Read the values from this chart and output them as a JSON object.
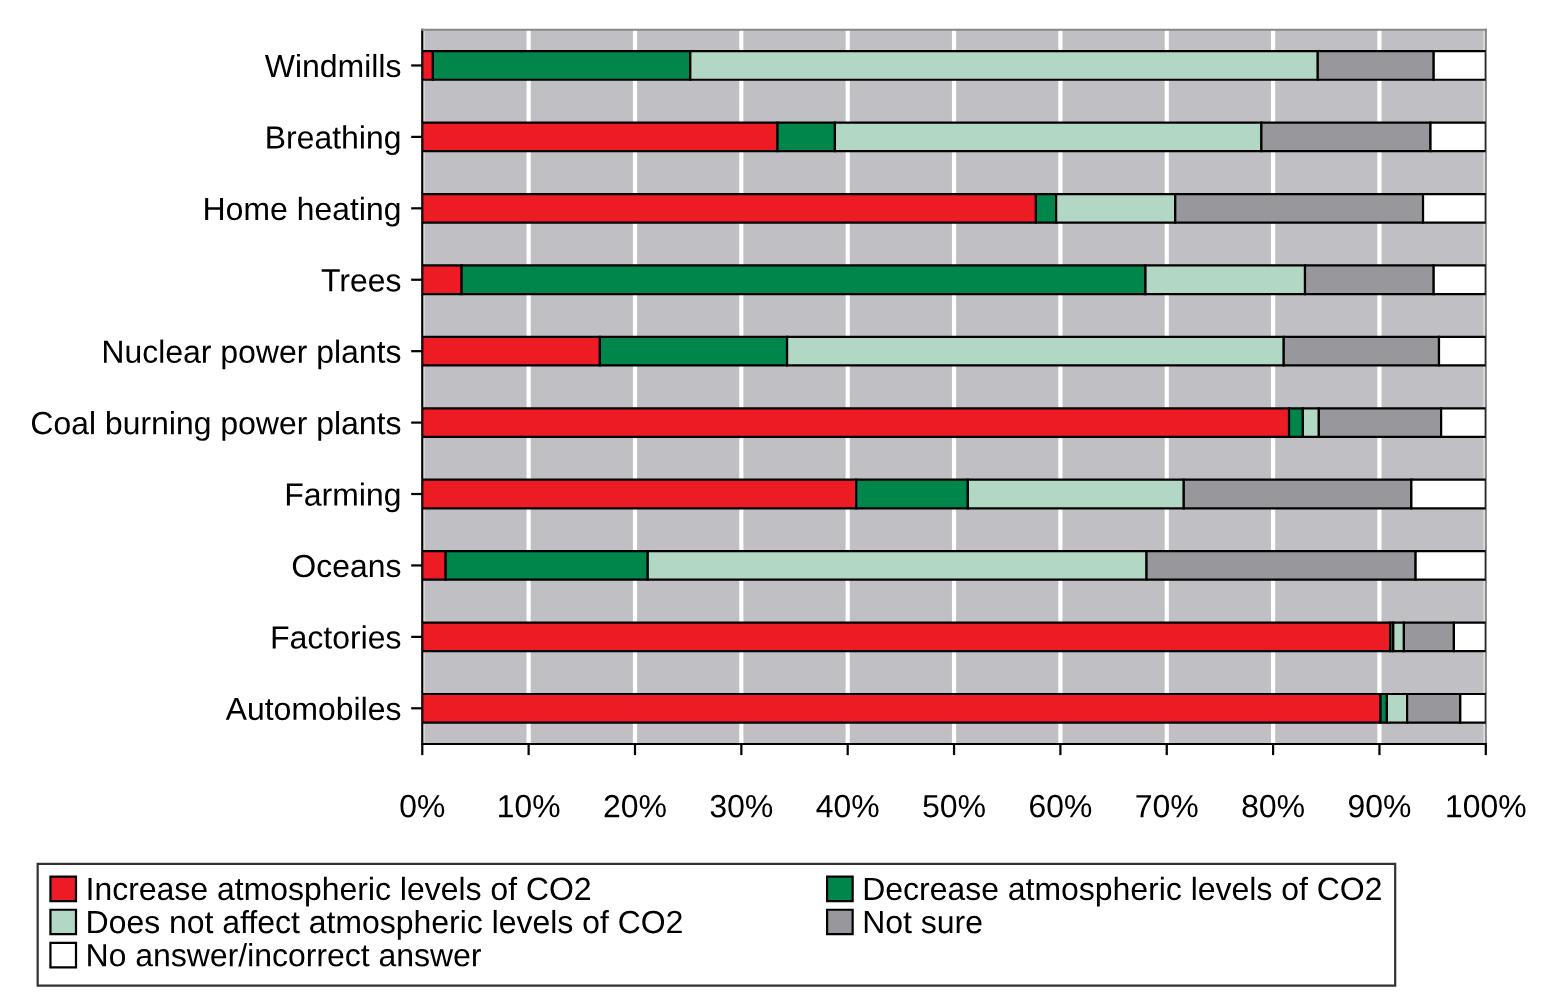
{
  "chart_data": {
    "type": "bar",
    "orientation": "horizontal",
    "stacked": true,
    "categories": [
      "Windmills",
      "Breathing",
      "Home heating",
      "Trees",
      "Nuclear power plants",
      "Coal burning power plants",
      "Farming",
      "Oceans",
      "Factories",
      "Automobiles"
    ],
    "series": [
      {
        "name": "Increase atmospheric levels of CO2",
        "color": "#ed1c24",
        "values": [
          1.0,
          33.4,
          57.7,
          3.7,
          16.7,
          81.5,
          40.8,
          2.2,
          91.0,
          90.1
        ]
      },
      {
        "name": "Decrease atmospheric levels of CO2",
        "color": "#00854a",
        "values": [
          24.2,
          5.4,
          1.9,
          64.3,
          17.6,
          1.3,
          10.5,
          19.0,
          0.3,
          0.6
        ]
      },
      {
        "name": "Does not affect atmospheric levels of CO2",
        "color": "#b3d7c5",
        "values": [
          59.0,
          40.1,
          11.2,
          15.0,
          46.7,
          1.5,
          20.3,
          46.9,
          1.0,
          1.9
        ]
      },
      {
        "name": "Not sure",
        "color": "#98989c",
        "values": [
          10.9,
          15.9,
          23.3,
          12.1,
          14.6,
          11.5,
          21.4,
          25.3,
          4.7,
          5.0
        ]
      },
      {
        "name": "No answer/incorrect answer",
        "color": "#ffffff",
        "values": [
          4.9,
          5.2,
          5.9,
          4.9,
          4.4,
          4.2,
          7.0,
          6.6,
          3.0,
          2.4
        ]
      }
    ],
    "xlim": [
      0,
      100
    ],
    "xticks": [
      {
        "value": 0,
        "label": "0%"
      },
      {
        "value": 10,
        "label": "10%"
      },
      {
        "value": 20,
        "label": "20%"
      },
      {
        "value": 30,
        "label": "30%"
      },
      {
        "value": 40,
        "label": "40%"
      },
      {
        "value": 50,
        "label": "50%"
      },
      {
        "value": 60,
        "label": "60%"
      },
      {
        "value": 70,
        "label": "70%"
      },
      {
        "value": 80,
        "label": "80%"
      },
      {
        "value": 90,
        "label": "90%"
      },
      {
        "value": 100,
        "label": "100%"
      }
    ],
    "grid": "x",
    "legend": "bottom"
  }
}
